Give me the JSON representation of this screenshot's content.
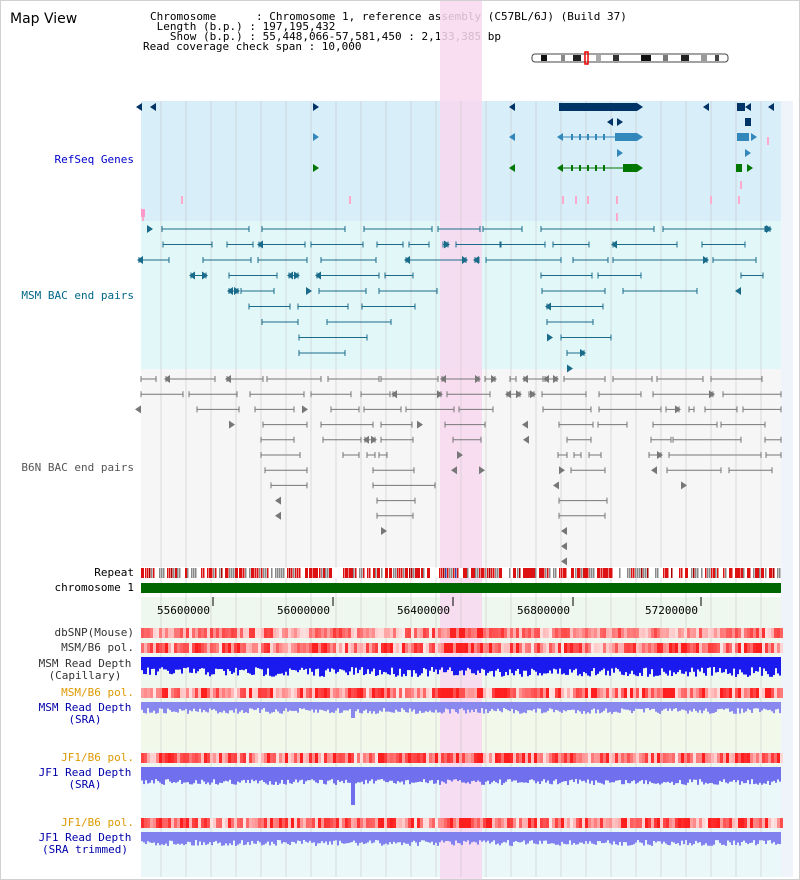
{
  "title": "Map View",
  "info": {
    "chromosome": "Chromosome      : Chromosome 1, reference assembly (C57BL/6J) (Build 37)",
    "length": " Length (b.p.) : 197,195,432",
    "show": "   Show (b.p.) : 55,448,066-57,581,450 : 2,133,385 bp",
    "span": "Read coverage check span : 10,000"
  },
  "tracks": {
    "refseq": "RefSeq Genes",
    "msm_bac": "MSM BAC end pairs",
    "b6n_bac": "B6N BAC end pairs",
    "repeat": "Repeat",
    "chromosome": "chromosome 1",
    "dbsnp": "dbSNP(Mouse)",
    "msm_b6_pol_1": "MSM/B6 pol.",
    "msm_read_depth_cap": "MSM Read Depth\n(Capillary)",
    "msm_b6_pol_2": "MSM/B6 pol.",
    "msm_read_depth_sra": "MSM Read Depth\n(SRA)",
    "jf1_b6_pol_1": "JF1/B6 pol.",
    "jf1_read_depth_sra": "JF1 Read Depth\n(SRA)",
    "jf1_b6_pol_2": "JF1/B6 pol.",
    "jf1_read_depth_trimmed": "JF1 Read Depth\n(SRA trimmed)"
  },
  "axis_ticks": [
    "55600000",
    "56000000",
    "56400000",
    "56800000",
    "57200000"
  ],
  "colors": {
    "refseq_label": "#0000cc",
    "msm_label": "#006688",
    "b6n_label": "#555555",
    "orange_label": "#dd9900",
    "blue_label": "#0000aa",
    "highlight": "#f8d8f0",
    "refseq_bg": "#d8eef8",
    "msm_bg": "#e2f8f8",
    "green_bar": "#006600"
  }
}
